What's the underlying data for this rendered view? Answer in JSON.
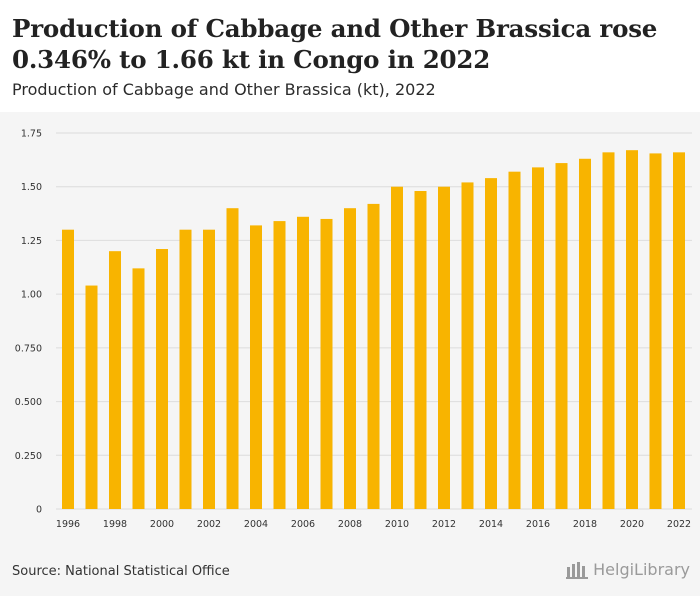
{
  "header": {
    "title": "Production of Cabbage and Other Brassica rose 0.346% to 1.66 kt in Congo in 2022",
    "subtitle": "Production of Cabbage and Other Brassica (kt), 2022"
  },
  "footer": {
    "source": "Source: National Statistical Office",
    "logo_text": "HelgiLibrary",
    "logo_icon": "building-icon"
  },
  "colors": {
    "bar": "#f8b400",
    "grid": "#dcdcdc",
    "chart_bg": "#f5f5f5"
  },
  "chart_data": {
    "type": "bar",
    "title": "",
    "xlabel": "",
    "ylabel": "",
    "ylim": [
      0,
      1.75
    ],
    "yticks": [
      "0",
      "0.250",
      "0.500",
      "0.750",
      "1.00",
      "1.25",
      "1.50",
      "1.75"
    ],
    "grid": true,
    "categories": [
      "1996",
      "1997",
      "1998",
      "1999",
      "2000",
      "2001",
      "2002",
      "2003",
      "2004",
      "2005",
      "2006",
      "2007",
      "2008",
      "2009",
      "2010",
      "2011",
      "2012",
      "2013",
      "2014",
      "2015",
      "2016",
      "2017",
      "2018",
      "2019",
      "2020",
      "2021",
      "2022"
    ],
    "xtick_labels": [
      "1996",
      "1998",
      "2000",
      "2002",
      "2004",
      "2006",
      "2008",
      "2010",
      "2012",
      "2014",
      "2016",
      "2018",
      "2020",
      "2022"
    ],
    "values": [
      1.3,
      1.04,
      1.2,
      1.12,
      1.21,
      1.3,
      1.3,
      1.4,
      1.32,
      1.34,
      1.36,
      1.35,
      1.4,
      1.42,
      1.5,
      1.48,
      1.5,
      1.52,
      1.54,
      1.57,
      1.59,
      1.61,
      1.63,
      1.66,
      1.67,
      1.655,
      1.66
    ]
  }
}
